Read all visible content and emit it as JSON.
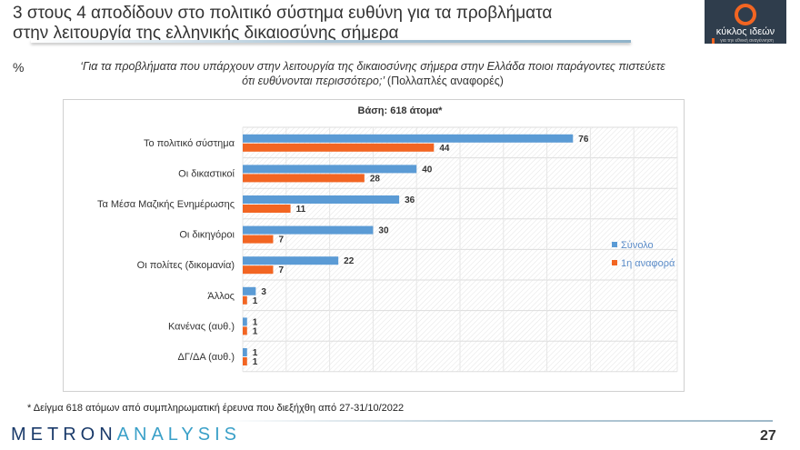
{
  "header": {
    "title_line1": "3 στους 4 αποδίδουν στο πολιτικό σύστημα ευθύνη για τα προβλήματα",
    "title_line2": "στην λειτουργία της ελληνικής δικαιοσύνης σήμερα"
  },
  "logo": {
    "name": "κύκλος ιδεών",
    "tagline": "για την εθνική αναγέννηση"
  },
  "percent_label": "%",
  "question": {
    "text": "‘Για τα προβλήματα που υπάρχουν στην λειτουργία της δικαιοσύνης σήμερα στην Ελλάδα ποιοι παράγοντες πιστεύετε ότι ευθύνονται περισσότερο;’",
    "note": "(Πολλαπλές αναφορές)"
  },
  "chart_data": {
    "type": "bar",
    "orientation": "horizontal",
    "title": "Βάση: 618 άτομα*",
    "categories": [
      "Το πολιτικό σύστημα",
      "Οι δικαστικοί",
      "Τα Μέσα Μαζικής Ενημέρωσης",
      "Οι δικηγόροι",
      "Οι πολίτες (δικομανία)",
      "Άλλος",
      "Κανένας (αυθ.)",
      "ΔΓ/ΔΑ (αυθ.)"
    ],
    "series": [
      {
        "name": "Σύνολο",
        "color": "#5b9bd5",
        "values": [
          76,
          40,
          36,
          30,
          22,
          3,
          1,
          1
        ]
      },
      {
        "name": "1η αναφορά",
        "color": "#f26522",
        "values": [
          44,
          28,
          11,
          7,
          7,
          1,
          1,
          1
        ]
      }
    ],
    "xlim": [
      0,
      100
    ],
    "legend": "right",
    "grid": true
  },
  "footnote": "* Δείγμα 618 ατόμων από συμπληρωματική έρευνα που διεξήχθη από 27-31/10/2022",
  "brand": {
    "part1": "METRON",
    "part2": "ANALYSIS"
  },
  "page_number": "27"
}
